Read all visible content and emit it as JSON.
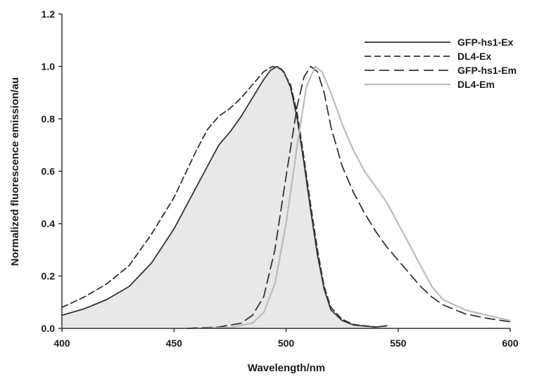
{
  "chart_data": {
    "type": "line",
    "title": "",
    "xlabel": "Wavelength/nm",
    "ylabel": "Normalized fluorescence emission/au",
    "xlim": [
      400,
      600
    ],
    "ylim": [
      0,
      1.2
    ],
    "x_ticks": [
      "400",
      "450",
      "500",
      "550",
      "600"
    ],
    "y_ticks": [
      "0.0",
      "0.2",
      "0.4",
      "0.6",
      "0.8",
      "1.0",
      "1.2"
    ],
    "grid": false,
    "legend_position": "top-right",
    "series": [
      {
        "name": "GFP-hs1-Ex",
        "color": "#333333",
        "style": "solid",
        "fill": true,
        "points": [
          [
            400,
            0.05
          ],
          [
            410,
            0.075
          ],
          [
            420,
            0.11
          ],
          [
            430,
            0.16
          ],
          [
            440,
            0.25
          ],
          [
            450,
            0.38
          ],
          [
            460,
            0.54
          ],
          [
            465,
            0.62
          ],
          [
            470,
            0.7
          ],
          [
            475,
            0.75
          ],
          [
            480,
            0.81
          ],
          [
            485,
            0.88
          ],
          [
            490,
            0.95
          ],
          [
            493,
            0.985
          ],
          [
            496,
            1.0
          ],
          [
            499,
            0.98
          ],
          [
            502,
            0.92
          ],
          [
            505,
            0.8
          ],
          [
            508,
            0.63
          ],
          [
            511,
            0.45
          ],
          [
            514,
            0.28
          ],
          [
            517,
            0.15
          ],
          [
            520,
            0.07
          ],
          [
            525,
            0.03
          ],
          [
            530,
            0.013
          ],
          [
            540,
            0.005
          ],
          [
            545,
            0.01
          ]
        ]
      },
      {
        "name": "DL4-Ex",
        "color": "#333333",
        "style": "dashed-short",
        "fill": false,
        "points": [
          [
            400,
            0.08
          ],
          [
            410,
            0.12
          ],
          [
            420,
            0.17
          ],
          [
            430,
            0.24
          ],
          [
            440,
            0.36
          ],
          [
            450,
            0.5
          ],
          [
            460,
            0.68
          ],
          [
            465,
            0.76
          ],
          [
            470,
            0.81
          ],
          [
            475,
            0.84
          ],
          [
            480,
            0.88
          ],
          [
            485,
            0.93
          ],
          [
            490,
            0.98
          ],
          [
            494,
            1.0
          ],
          [
            498,
            0.99
          ],
          [
            502,
            0.93
          ],
          [
            505,
            0.82
          ],
          [
            508,
            0.65
          ],
          [
            511,
            0.47
          ],
          [
            514,
            0.3
          ],
          [
            517,
            0.16
          ],
          [
            520,
            0.08
          ],
          [
            525,
            0.035
          ],
          [
            530,
            0.015
          ],
          [
            540,
            0.005
          ]
        ]
      },
      {
        "name": "GFP-hs1-Em",
        "color": "#333333",
        "style": "dashed-long",
        "fill": false,
        "points": [
          [
            456,
            0.0
          ],
          [
            470,
            0.005
          ],
          [
            480,
            0.02
          ],
          [
            485,
            0.05
          ],
          [
            490,
            0.12
          ],
          [
            495,
            0.3
          ],
          [
            500,
            0.58
          ],
          [
            505,
            0.85
          ],
          [
            508,
            0.96
          ],
          [
            511,
            1.0
          ],
          [
            514,
            0.98
          ],
          [
            517,
            0.9
          ],
          [
            520,
            0.77
          ],
          [
            525,
            0.62
          ],
          [
            530,
            0.52
          ],
          [
            535,
            0.44
          ],
          [
            540,
            0.37
          ],
          [
            545,
            0.31
          ],
          [
            550,
            0.26
          ],
          [
            555,
            0.21
          ],
          [
            560,
            0.16
          ],
          [
            565,
            0.12
          ],
          [
            570,
            0.09
          ],
          [
            580,
            0.055
          ],
          [
            590,
            0.038
          ],
          [
            600,
            0.025
          ]
        ]
      },
      {
        "name": "DL4-Em",
        "color": "#bbbbbb",
        "style": "solid",
        "fill": false,
        "points": [
          [
            462,
            0.0
          ],
          [
            475,
            0.003
          ],
          [
            485,
            0.02
          ],
          [
            490,
            0.06
          ],
          [
            495,
            0.17
          ],
          [
            500,
            0.4
          ],
          [
            505,
            0.7
          ],
          [
            509,
            0.92
          ],
          [
            513,
            1.0
          ],
          [
            516,
            0.98
          ],
          [
            520,
            0.9
          ],
          [
            525,
            0.78
          ],
          [
            530,
            0.68
          ],
          [
            535,
            0.6
          ],
          [
            540,
            0.54
          ],
          [
            545,
            0.48
          ],
          [
            550,
            0.4
          ],
          [
            555,
            0.32
          ],
          [
            560,
            0.24
          ],
          [
            565,
            0.16
          ],
          [
            570,
            0.11
          ],
          [
            580,
            0.07
          ],
          [
            590,
            0.05
          ],
          [
            600,
            0.03
          ]
        ]
      }
    ]
  }
}
